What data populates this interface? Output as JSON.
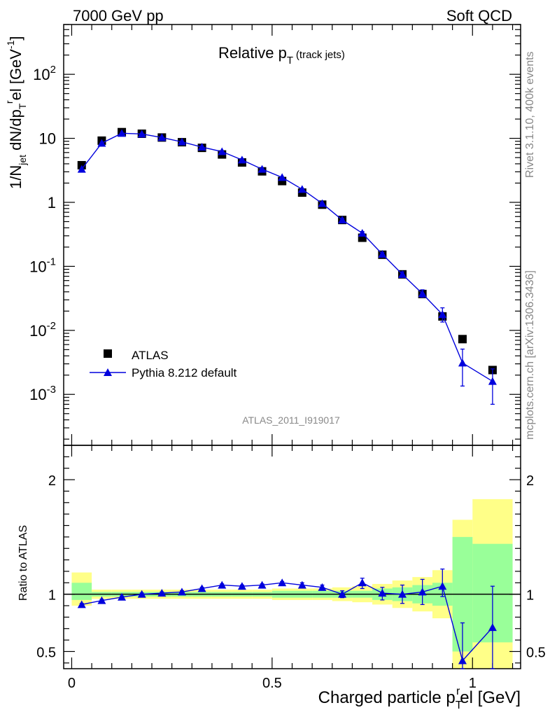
{
  "header": {
    "left": "7000 GeV pp",
    "right": "Soft QCD"
  },
  "side_labels": {
    "rivet": "Rivet 3.1.10,  400k events",
    "mcplots": "mcplots.cern.ch [arXiv:1306.3436]"
  },
  "chart_data": [
    {
      "type": "scatter",
      "title": {
        "main": "Relative p",
        "sub": "T",
        "suffix": " (track jets)"
      },
      "ylabel": {
        "a": "1/N",
        "a_sub": "jet",
        "b": " dN/dp",
        "b_sub": "T",
        "b_sup": "r",
        "c": "el [GeV",
        "c_sup": "-1",
        "d": "]"
      },
      "yscale": "log",
      "ylim": [
        0.00016,
        600
      ],
      "xlim": [
        -0.02,
        1.12
      ],
      "yticks": [
        {
          "v": 0.001,
          "base": "10",
          "exp": "-3"
        },
        {
          "v": 0.01,
          "base": "10",
          "exp": "-2"
        },
        {
          "v": 0.1,
          "base": "10",
          "exp": "-1"
        },
        {
          "v": 1,
          "base": "1",
          "exp": ""
        },
        {
          "v": 10,
          "base": "10",
          "exp": ""
        },
        {
          "v": 100,
          "base": "10",
          "exp": "2"
        }
      ],
      "watermark": "ATLAS_2011_I919017",
      "legend": {
        "position": "lower-left",
        "entries": [
          "ATLAS",
          "Pythia 8.212 default"
        ]
      },
      "x": [
        0.025,
        0.075,
        0.125,
        0.175,
        0.225,
        0.275,
        0.325,
        0.375,
        0.425,
        0.475,
        0.525,
        0.575,
        0.625,
        0.675,
        0.725,
        0.775,
        0.825,
        0.875,
        0.925,
        0.975,
        1.05
      ],
      "series": [
        {
          "name": "ATLAS",
          "color": "#000000",
          "marker": "square",
          "values": [
            3.8,
            9.2,
            12.5,
            11.8,
            10.3,
            8.7,
            7.1,
            5.6,
            4.2,
            3.05,
            2.15,
            1.42,
            0.92,
            0.53,
            0.28,
            0.152,
            0.075,
            0.037,
            0.0165,
            0.0073,
            0.0024
          ]
        },
        {
          "name": "Pythia 8.212 default",
          "color": "#0000dd",
          "marker": "triangle",
          "values": [
            3.3,
            8.4,
            12.0,
            11.7,
            10.3,
            8.8,
            7.3,
            6.2,
            4.6,
            3.3,
            2.45,
            1.6,
            0.96,
            0.53,
            0.33,
            0.155,
            0.075,
            0.0375,
            0.0177,
            0.0031,
            0.0016
          ],
          "err_low": [
            3.2,
            8.2,
            11.8,
            11.5,
            10.1,
            8.6,
            7.1,
            6.0,
            4.4,
            3.2,
            2.38,
            1.55,
            0.93,
            0.51,
            0.31,
            0.145,
            0.069,
            0.033,
            0.0135,
            0.00135,
            0.0007
          ],
          "err_high": [
            3.4,
            8.6,
            12.2,
            11.9,
            10.5,
            9.0,
            7.5,
            6.4,
            4.8,
            3.4,
            2.52,
            1.65,
            0.99,
            0.56,
            0.35,
            0.165,
            0.082,
            0.043,
            0.0225,
            0.0051,
            0.0025
          ]
        }
      ]
    },
    {
      "type": "scatter",
      "ylabel": "Ratio to ATLAS",
      "xlabel": {
        "a": "Charged particle p",
        "sub": "T",
        "sup": "r",
        "b": "el [GeV]"
      },
      "xlim": [
        -0.02,
        1.12
      ],
      "ylim": [
        0.35,
        2.3
      ],
      "xticks": [
        0,
        0.5,
        1
      ],
      "xtick_labels": [
        "0",
        "0.5",
        "1"
      ],
      "yticks": [
        0.5,
        1,
        2
      ],
      "ytick_labels": [
        "0.5",
        "1",
        "2"
      ],
      "reference_line": 1,
      "bands": {
        "edges": [
          0.0,
          0.05,
          0.1,
          0.15,
          0.2,
          0.25,
          0.3,
          0.35,
          0.4,
          0.45,
          0.5,
          0.55,
          0.6,
          0.65,
          0.7,
          0.75,
          0.8,
          0.85,
          0.9,
          0.95,
          1.0,
          1.1
        ],
        "green_low": [
          0.95,
          0.98,
          0.98,
          0.98,
          0.98,
          0.98,
          0.98,
          0.98,
          0.98,
          0.98,
          0.97,
          0.97,
          0.97,
          0.97,
          0.97,
          0.95,
          0.94,
          0.92,
          0.9,
          0.5,
          0.58
        ],
        "green_high": [
          1.1,
          1.02,
          1.02,
          1.02,
          1.02,
          1.02,
          1.02,
          1.02,
          1.02,
          1.02,
          1.03,
          1.03,
          1.03,
          1.03,
          1.03,
          1.05,
          1.06,
          1.08,
          1.1,
          1.5,
          1.44
        ],
        "yellow_low": [
          0.9,
          0.96,
          0.96,
          0.96,
          0.96,
          0.96,
          0.96,
          0.96,
          0.96,
          0.96,
          0.95,
          0.95,
          0.95,
          0.94,
          0.93,
          0.91,
          0.88,
          0.85,
          0.79,
          0.35,
          0.35
        ],
        "yellow_high": [
          1.19,
          1.04,
          1.04,
          1.04,
          1.04,
          1.04,
          1.04,
          1.04,
          1.04,
          1.04,
          1.05,
          1.05,
          1.05,
          1.06,
          1.07,
          1.09,
          1.12,
          1.15,
          1.21,
          1.65,
          1.83
        ]
      },
      "series": [
        {
          "name": "Pythia 8.212 default / ATLAS",
          "color": "#0000dd",
          "values": [
            0.91,
            0.945,
            0.975,
            1.0,
            1.01,
            1.02,
            1.05,
            1.08,
            1.07,
            1.08,
            1.1,
            1.08,
            1.06,
            1.0,
            1.1,
            1.01,
            1.0,
            1.02,
            1.07,
            0.42,
            0.71
          ],
          "err_low": [
            0.9,
            0.935,
            0.965,
            0.99,
            1.0,
            1.01,
            1.04,
            1.07,
            1.06,
            1.07,
            1.09,
            1.06,
            1.04,
            0.97,
            1.05,
            0.95,
            0.92,
            0.91,
            0.98,
            0.35,
            0.35
          ],
          "err_high": [
            0.92,
            0.955,
            0.985,
            1.01,
            1.02,
            1.03,
            1.06,
            1.09,
            1.08,
            1.09,
            1.11,
            1.1,
            1.08,
            1.03,
            1.14,
            1.06,
            1.08,
            1.13,
            1.22,
            0.75,
            1.07
          ]
        }
      ]
    }
  ]
}
